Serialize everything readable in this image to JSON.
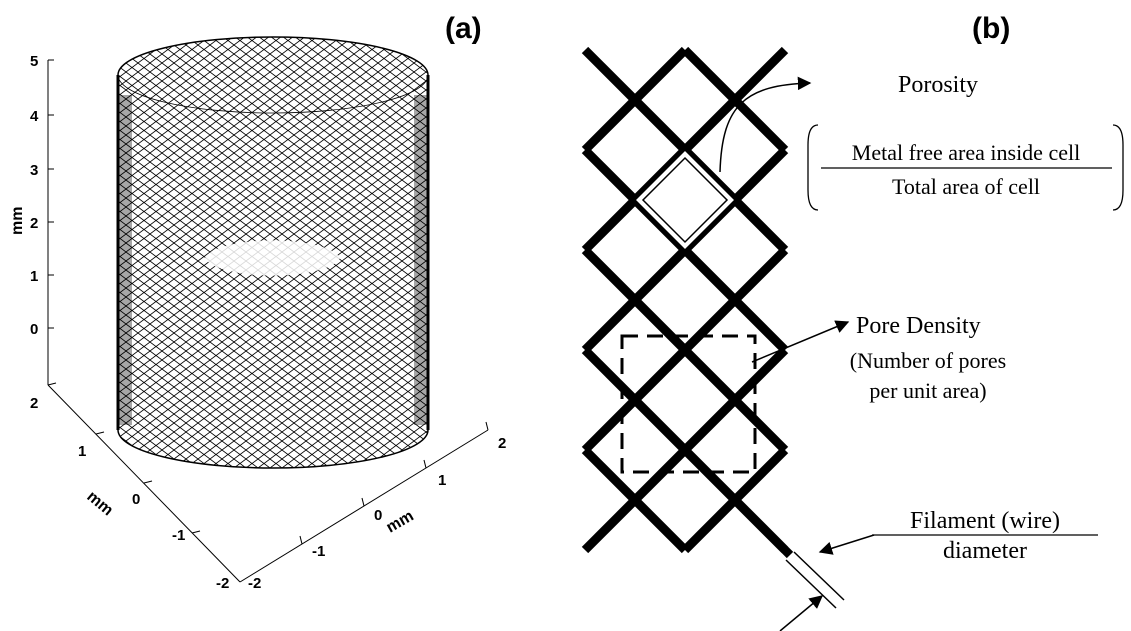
{
  "panel_a": {
    "label": "(a)",
    "z_axis": {
      "label": "mm",
      "ticks": [
        "0",
        "1",
        "2",
        "3",
        "4",
        "5"
      ]
    },
    "x_axis": {
      "label": "mm",
      "ticks": [
        "-2",
        "-1",
        "0",
        "1",
        "2"
      ]
    },
    "y_axis": {
      "label": "mm",
      "ticks": [
        "2",
        "1",
        "0",
        "-1",
        "-2"
      ]
    }
  },
  "panel_b": {
    "label": "(b)",
    "porosity": {
      "title": "Porosity",
      "numerator": "Metal free area inside cell",
      "denominator": "Total area of cell"
    },
    "pore_density": {
      "title": "Pore Density",
      "line1": "(Number of pores",
      "line2": "per unit area)"
    },
    "filament": {
      "line1": "Filament (wire)",
      "line2": "diameter"
    }
  }
}
